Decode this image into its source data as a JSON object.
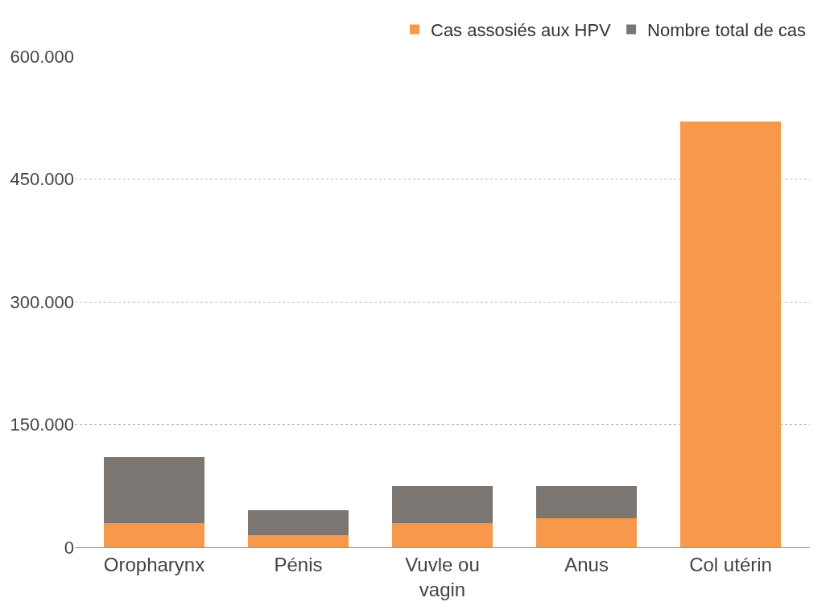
{
  "chart_data": {
    "type": "bar",
    "stacked": true,
    "categories": [
      "Oropharynx",
      "Pénis",
      "Vuvle ou\nvagin",
      "Anus",
      "Col utérin"
    ],
    "series": [
      {
        "name": "Cas assosiés aux HPV",
        "color": "#f7984a",
        "values": [
          30000,
          15000,
          30000,
          35000,
          520000
        ]
      },
      {
        "name": "Nombre total de cas",
        "color": "#7c7672",
        "values": [
          80000,
          30000,
          45000,
          40000,
          null
        ]
      }
    ],
    "ylim": [
      0,
      600000
    ],
    "yticks": [
      {
        "value": 0,
        "label": "0"
      },
      {
        "value": 150000,
        "label": "150.000"
      },
      {
        "value": 300000,
        "label": "300.000"
      },
      {
        "value": 450000,
        "label": "450.000"
      },
      {
        "value": 600000,
        "label": "600.000"
      }
    ],
    "grid": "y",
    "legend": "top right"
  }
}
